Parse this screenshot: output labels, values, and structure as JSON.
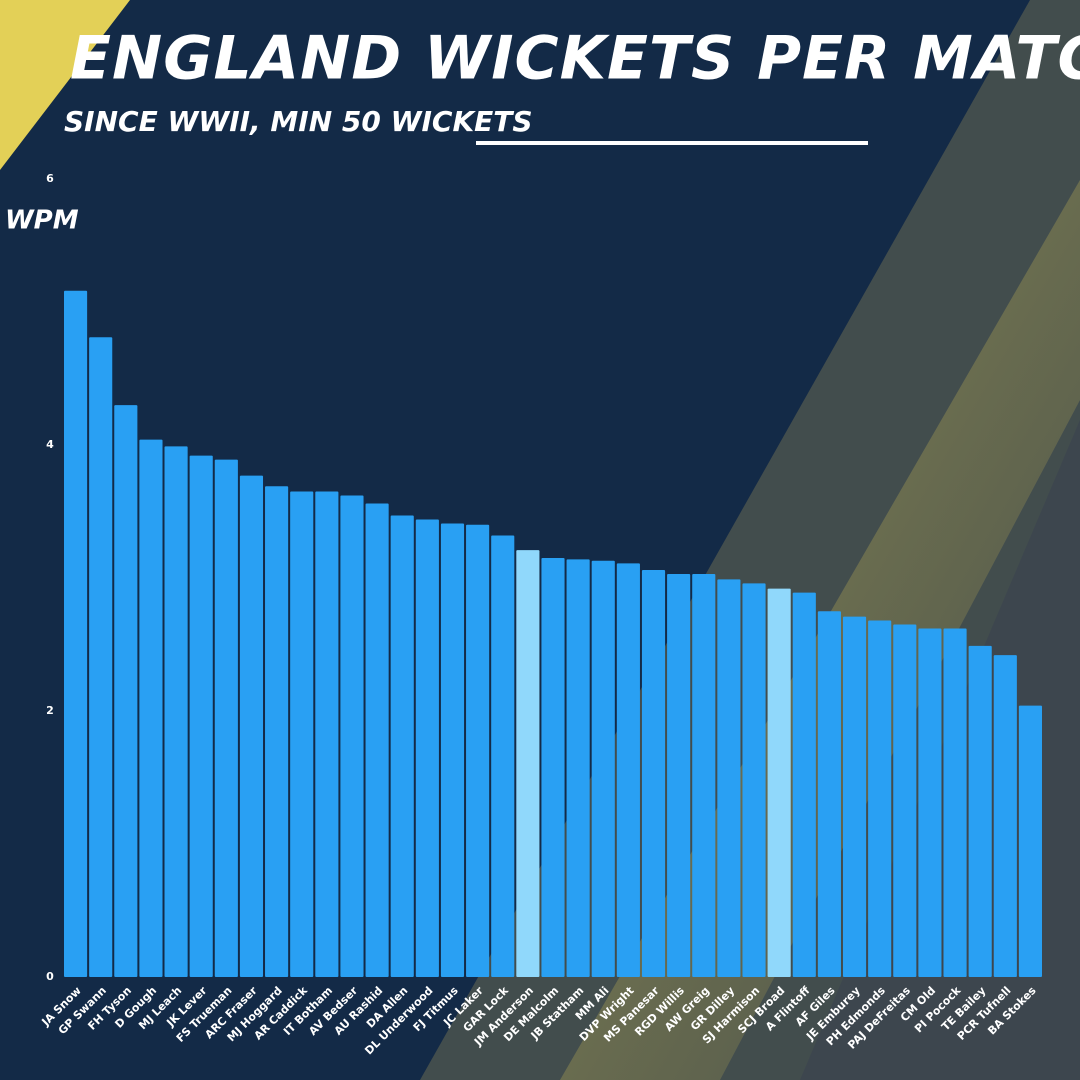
{
  "chart_data": {
    "type": "bar",
    "title": "ENGLAND WICKETS PER MATCH AWAY",
    "subtitle": "SINCE WWII, MIN 50 WICKETS",
    "y_label": "WPM",
    "categories": [
      "JA Snow",
      "GP Swann",
      "FH Tyson",
      "D Gough",
      "MJ Leach",
      "JK Lever",
      "FS Trueman",
      "ARC Fraser",
      "MJ Hoggard",
      "AR Caddick",
      "IT Botham",
      "AV Bedser",
      "AU Rashid",
      "DA Allen",
      "DL Underwood",
      "FJ Titmus",
      "JC Laker",
      "GAR Lock",
      "JM Anderson",
      "DE Malcolm",
      "JB Statham",
      "MM Ali",
      "DVP Wright",
      "MS Panesar",
      "RGD Willis",
      "AW Greig",
      "GR Dilley",
      "SJ Harmison",
      "SCJ Broad",
      "A Flintoff",
      "AF Giles",
      "JE Emburey",
      "PH Edmonds",
      "PAJ DeFreitas",
      "CM Old",
      "PI Pocock",
      "TE Bailey",
      "PCR Tufnell",
      "BA Stokes"
    ],
    "values": [
      5.16,
      4.81,
      4.3,
      4.04,
      3.99,
      3.92,
      3.89,
      3.77,
      3.69,
      3.65,
      3.65,
      3.62,
      3.56,
      3.47,
      3.44,
      3.41,
      3.4,
      3.32,
      3.21,
      3.15,
      3.14,
      3.13,
      3.11,
      3.06,
      3.03,
      3.03,
      2.99,
      2.96,
      2.92,
      2.89,
      2.75,
      2.71,
      2.68,
      2.65,
      2.62,
      2.62,
      2.49,
      2.42,
      2.04
    ],
    "colors": [
      "#29a0f3",
      "#29a0f3",
      "#29a0f3",
      "#29a0f3",
      "#29a0f3",
      "#29a0f3",
      "#29a0f3",
      "#29a0f3",
      "#29a0f3",
      "#29a0f3",
      "#29a0f3",
      "#29a0f3",
      "#29a0f3",
      "#29a0f3",
      "#29a0f3",
      "#29a0f3",
      "#29a0f3",
      "#29a0f3",
      "#90d8fb",
      "#29a0f3",
      "#29a0f3",
      "#29a0f3",
      "#29a0f3",
      "#29a0f3",
      "#29a0f3",
      "#29a0f3",
      "#29a0f3",
      "#29a0f3",
      "#90d8fb",
      "#29a0f3",
      "#29a0f3",
      "#29a0f3",
      "#29a0f3",
      "#29a0f3",
      "#29a0f3",
      "#29a0f3",
      "#29a0f3",
      "#29a0f3",
      "#29a0f3"
    ],
    "ylim": [
      0,
      6
    ],
    "yticks": [
      0,
      2,
      4,
      6
    ],
    "grid": false
  }
}
